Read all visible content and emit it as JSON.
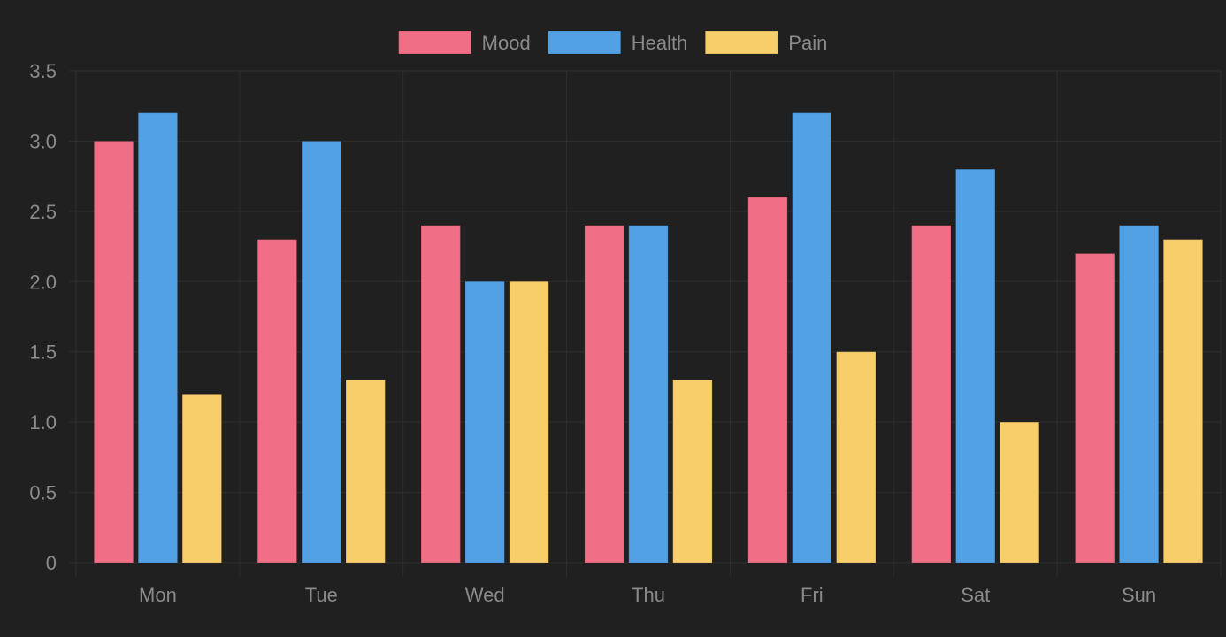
{
  "chart_data": {
    "type": "bar",
    "categories": [
      "Mon",
      "Tue",
      "Wed",
      "Thu",
      "Fri",
      "Sat",
      "Sun"
    ],
    "series": [
      {
        "name": "Mood",
        "color": "#f06e86",
        "values": [
          3.0,
          2.3,
          2.4,
          2.4,
          2.6,
          2.4,
          2.2
        ]
      },
      {
        "name": "Health",
        "color": "#52a1e5",
        "values": [
          3.2,
          3.0,
          2.0,
          2.4,
          3.2,
          2.8,
          2.4
        ]
      },
      {
        "name": "Pain",
        "color": "#f8ce6b",
        "values": [
          1.2,
          1.3,
          2.0,
          1.3,
          1.5,
          1.0,
          2.3
        ]
      }
    ],
    "ylim": [
      0,
      3.5
    ],
    "yticks": [
      "0",
      "0.5",
      "1.0",
      "1.5",
      "2.0",
      "2.5",
      "3.0",
      "3.5"
    ],
    "grid": true,
    "legend_position": "top-center",
    "title": "",
    "xlabel": "",
    "ylabel": ""
  },
  "colors": {
    "background": "#202020",
    "grid": "#2e2e2e",
    "tick_text": "#8a8a8a",
    "legend_text": "#8a8a8a"
  }
}
